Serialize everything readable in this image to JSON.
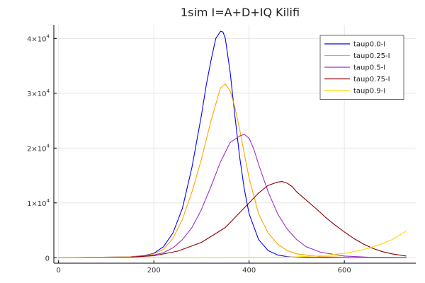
{
  "chart_data": {
    "type": "line",
    "title": "1sim I=A+D+IQ Kilifi",
    "xlabel": "",
    "ylabel": "",
    "xlim": [
      -10,
      750
    ],
    "ylim": [
      -1000,
      42500
    ],
    "grid": true,
    "legend_position": "top-right",
    "x_ticks": [
      {
        "value": 0,
        "label": "0"
      },
      {
        "value": 200,
        "label": "200"
      },
      {
        "value": 400,
        "label": "400"
      },
      {
        "value": 600,
        "label": "600"
      }
    ],
    "y_ticks": [
      {
        "value": 0,
        "label": "0",
        "exp": ""
      },
      {
        "value": 10000,
        "label": "1×10",
        "exp": "4"
      },
      {
        "value": 20000,
        "label": "2×10",
        "exp": "4"
      },
      {
        "value": 30000,
        "label": "3×10",
        "exp": "4"
      },
      {
        "value": 40000,
        "label": "4×10",
        "exp": "4"
      }
    ],
    "series": [
      {
        "name": "taup0.0-I",
        "color": "#0000ff",
        "x": [
          0,
          150,
          180,
          200,
          220,
          240,
          260,
          280,
          300,
          310,
          320,
          330,
          340,
          345,
          350,
          360,
          370,
          380,
          390,
          400,
          420,
          440,
          460,
          480,
          500,
          550,
          600,
          650,
          730
        ],
        "values": [
          0,
          150,
          400,
          800,
          2000,
          4500,
          9000,
          16500,
          26000,
          31500,
          36000,
          40000,
          41300,
          41200,
          40000,
          34000,
          26000,
          18500,
          12500,
          8000,
          3300,
          1300,
          500,
          200,
          100,
          40,
          20,
          10,
          5
        ]
      },
      {
        "name": "taup0.25-I",
        "color": "#ffa500",
        "x": [
          0,
          150,
          180,
          200,
          220,
          240,
          260,
          280,
          300,
          320,
          340,
          350,
          360,
          370,
          380,
          390,
          400,
          420,
          440,
          460,
          480,
          500,
          550,
          600,
          650,
          730
        ],
        "values": [
          0,
          150,
          350,
          700,
          1500,
          3500,
          7000,
          12000,
          18000,
          25000,
          31000,
          31700,
          30500,
          27500,
          23500,
          19000,
          14500,
          8000,
          4500,
          2500,
          1300,
          700,
          200,
          80,
          40,
          20
        ]
      },
      {
        "name": "taup0.5-I",
        "color": "#9932cc",
        "x": [
          0,
          150,
          200,
          220,
          240,
          260,
          280,
          300,
          320,
          340,
          360,
          380,
          390,
          400,
          410,
          420,
          440,
          460,
          480,
          500,
          520,
          550,
          600,
          650,
          700,
          730
        ],
        "values": [
          0,
          100,
          500,
          900,
          1800,
          3300,
          5500,
          8800,
          13000,
          17500,
          21000,
          22200,
          22500,
          21800,
          19800,
          17000,
          12000,
          8000,
          5200,
          3300,
          2000,
          1000,
          300,
          100,
          50,
          30
        ]
      },
      {
        "name": "taup0.75-I",
        "color": "#8b0000",
        "x": [
          0,
          150,
          200,
          250,
          300,
          350,
          400,
          420,
          440,
          460,
          470,
          480,
          490,
          500,
          520,
          540,
          560,
          580,
          600,
          620,
          640,
          660,
          680,
          700,
          730
        ],
        "values": [
          0,
          80,
          350,
          1200,
          2800,
          5500,
          10000,
          11800,
          13200,
          13800,
          13900,
          13600,
          13000,
          12000,
          10500,
          9000,
          7400,
          6000,
          4700,
          3500,
          2500,
          1700,
          1100,
          700,
          300
        ]
      },
      {
        "name": "taup0.9-I",
        "color": "#ffd700",
        "x": [
          0,
          400,
          500,
          550,
          600,
          620,
          640,
          660,
          680,
          700,
          720,
          730
        ],
        "values": [
          0,
          20,
          150,
          350,
          800,
          1100,
          1500,
          2000,
          2600,
          3300,
          4300,
          4900
        ]
      }
    ]
  }
}
